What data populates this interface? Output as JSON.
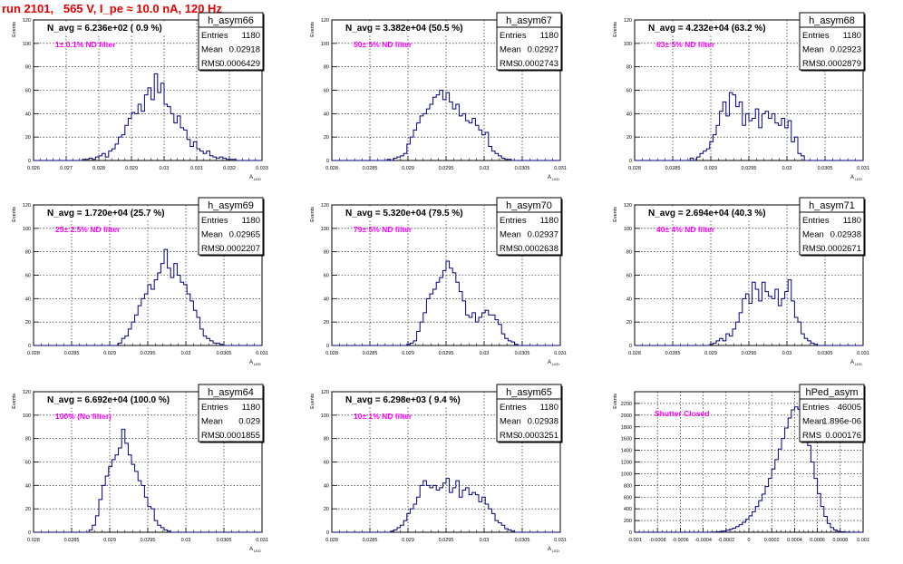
{
  "page": {
    "run_title": "run 2101,   565 V, I_pe ≈ 10.0 nA, 120 Hz"
  },
  "style": {
    "hist_color": "#000080",
    "annotation_color": "#ff00ff",
    "title_color": "#e60000"
  },
  "chart_data": [
    {
      "type": "bar",
      "histogram": true,
      "name": "h_asym66",
      "navg_text": "N_avg = 6.236e+02 ( 0.9 %)",
      "annotation": "1± 0.1% ND filter",
      "stats": {
        "entries_label": "Entries",
        "entries": "1180",
        "mean_label": "Mean",
        "mean": "0.02918",
        "rms_label": "RMS",
        "rms": "0.0006429"
      },
      "ylabel": "Events",
      "xlabel": "A_{LED}",
      "xlim": [
        0.026,
        0.033
      ],
      "ylim": [
        0,
        120
      ],
      "xticks": [
        "0.026",
        "0.027",
        "0.028",
        "0.029",
        "0.03",
        "0.031",
        "0.032",
        "0.033"
      ],
      "xtick_values": [
        0.026,
        0.027,
        0.028,
        0.029,
        0.03,
        0.031,
        0.032,
        0.033
      ],
      "yticks": [
        "0",
        "20",
        "40",
        "60",
        "80",
        "100",
        "120"
      ],
      "grid": true,
      "values": [
        0,
        0,
        0,
        0,
        0,
        0,
        0,
        0,
        0,
        0,
        0,
        0,
        0,
        0,
        0,
        1,
        1,
        2,
        1,
        3,
        4,
        6,
        3,
        8,
        10,
        14,
        20,
        22,
        30,
        36,
        41,
        40,
        48,
        42,
        56,
        62,
        52,
        74,
        58,
        66,
        48,
        46,
        40,
        32,
        38,
        28,
        26,
        18,
        12,
        16,
        10,
        8,
        6,
        8,
        4,
        3,
        2,
        3,
        2,
        1,
        1,
        1,
        0,
        0,
        0,
        0,
        0,
        0,
        0,
        0
      ]
    },
    {
      "type": "bar",
      "histogram": true,
      "name": "h_asym67",
      "navg_text": "N_avg = 3.382e+04 (50.5 %)",
      "annotation": "50± 5% ND filter",
      "stats": {
        "entries_label": "Entries",
        "entries": "1180",
        "mean_label": "Mean",
        "mean": "0.02927",
        "rms_label": "RMS",
        "rms": "0.0002743"
      },
      "ylabel": "Events",
      "xlabel": "A_{LED}",
      "xlim": [
        0.028,
        0.031
      ],
      "ylim": [
        0,
        120
      ],
      "xticks": [
        "0.028",
        "0.0285",
        "0.029",
        "0.0295",
        "0.03",
        "0.0305",
        "0.031"
      ],
      "xtick_values": [
        0.028,
        0.0285,
        0.029,
        0.0295,
        0.03,
        0.0305,
        0.031
      ],
      "yticks": [
        "0",
        "20",
        "40",
        "60",
        "80",
        "100",
        "120"
      ],
      "grid": true,
      "values": [
        0,
        0,
        0,
        0,
        0,
        0,
        0,
        0,
        0,
        0,
        0,
        0,
        0,
        0,
        0,
        0,
        0,
        1,
        0,
        2,
        3,
        4,
        6,
        14,
        20,
        26,
        32,
        38,
        40,
        44,
        48,
        54,
        56,
        60,
        52,
        58,
        50,
        44,
        48,
        38,
        40,
        34,
        32,
        36,
        30,
        26,
        22,
        24,
        12,
        8,
        6,
        4,
        2,
        1,
        1,
        0,
        0,
        0,
        0,
        0,
        0,
        0,
        0,
        0,
        0,
        0,
        0,
        0,
        0,
        0
      ]
    },
    {
      "type": "bar",
      "histogram": true,
      "name": "h_asym68",
      "navg_text": "N_avg = 4.232e+04 (63.2 %)",
      "annotation": "63± 5% ND filter",
      "stats": {
        "entries_label": "Entries",
        "entries": "1180",
        "mean_label": "Mean",
        "mean": "0.02923",
        "rms_label": "RMS",
        "rms": "0.0002879"
      },
      "ylabel": "Events",
      "xlabel": "A_{LED}",
      "xlim": [
        0.028,
        0.031
      ],
      "ylim": [
        0,
        120
      ],
      "xticks": [
        "0.028",
        "0.0285",
        "0.029",
        "0.0295",
        "0.03",
        "0.0305",
        "0.031"
      ],
      "xtick_values": [
        0.028,
        0.0285,
        0.029,
        0.0295,
        0.03,
        0.0305,
        0.031
      ],
      "yticks": [
        "0",
        "20",
        "40",
        "60",
        "80",
        "100",
        "120"
      ],
      "grid": true,
      "values": [
        0,
        0,
        0,
        0,
        0,
        0,
        0,
        0,
        0,
        0,
        0,
        0,
        0,
        0,
        0,
        0,
        0,
        2,
        0,
        3,
        6,
        8,
        10,
        16,
        22,
        30,
        42,
        50,
        38,
        58,
        56,
        46,
        50,
        30,
        40,
        34,
        36,
        44,
        28,
        40,
        42,
        36,
        40,
        32,
        30,
        36,
        28,
        34,
        16,
        20,
        6,
        4,
        0,
        0,
        0,
        0,
        0,
        0,
        0,
        0,
        0,
        0,
        0,
        0,
        0,
        0,
        0,
        0,
        0,
        0
      ]
    },
    {
      "type": "bar",
      "histogram": true,
      "name": "h_asym69",
      "navg_text": "N_avg = 1.720e+04 (25.7 %)",
      "annotation": "25± 2.5% ND filter",
      "stats": {
        "entries_label": "Entries",
        "entries": "1180",
        "mean_label": "Mean",
        "mean": "0.02965",
        "rms_label": "RMS",
        "rms": "0.0002207"
      },
      "ylabel": "Events",
      "xlabel": "A_{LED}",
      "xlim": [
        0.028,
        0.031
      ],
      "ylim": [
        0,
        120
      ],
      "xticks": [
        "0.028",
        "0.0285",
        "0.029",
        "0.0295",
        "0.03",
        "0.0305",
        "0.031"
      ],
      "xtick_values": [
        0.028,
        0.0285,
        0.029,
        0.0295,
        0.03,
        0.0305,
        0.031
      ],
      "yticks": [
        "0",
        "20",
        "40",
        "60",
        "80",
        "100",
        "120"
      ],
      "grid": true,
      "values": [
        0,
        0,
        0,
        0,
        0,
        0,
        0,
        0,
        0,
        0,
        0,
        0,
        0,
        0,
        0,
        0,
        0,
        0,
        0,
        0,
        0,
        0,
        0,
        0,
        0,
        0,
        2,
        6,
        8,
        14,
        20,
        26,
        34,
        40,
        44,
        52,
        48,
        56,
        62,
        70,
        82,
        66,
        58,
        70,
        60,
        54,
        52,
        44,
        38,
        30,
        24,
        14,
        8,
        6,
        4,
        2,
        2,
        1,
        0,
        0,
        0,
        0,
        0,
        0,
        0,
        0,
        0,
        0,
        0,
        0
      ]
    },
    {
      "type": "bar",
      "histogram": true,
      "name": "h_asym70",
      "navg_text": "N_avg = 5.320e+04 (79.5 %)",
      "annotation": "79± 5% ND filter",
      "stats": {
        "entries_label": "Entries",
        "entries": "1180",
        "mean_label": "Mean",
        "mean": "0.02937",
        "rms_label": "RMS",
        "rms": "0.0002638"
      },
      "ylabel": "Events",
      "xlabel": "A_{LED}",
      "xlim": [
        0.028,
        0.031
      ],
      "ylim": [
        0,
        120
      ],
      "xticks": [
        "0.028",
        "0.0285",
        "0.029",
        "0.0295",
        "0.03",
        "0.0305",
        "0.031"
      ],
      "xtick_values": [
        0.028,
        0.0285,
        0.029,
        0.0295,
        0.03,
        0.0305,
        0.031
      ],
      "yticks": [
        "0",
        "20",
        "40",
        "60",
        "80",
        "100",
        "120"
      ],
      "grid": true,
      "values": [
        0,
        0,
        0,
        0,
        0,
        0,
        0,
        0,
        0,
        0,
        0,
        0,
        0,
        0,
        0,
        0,
        0,
        0,
        0,
        0,
        0,
        0,
        0,
        1,
        2,
        4,
        12,
        20,
        28,
        40,
        44,
        48,
        54,
        58,
        64,
        72,
        66,
        62,
        54,
        46,
        38,
        26,
        24,
        28,
        20,
        24,
        28,
        30,
        26,
        26,
        22,
        18,
        10,
        6,
        4,
        3,
        1,
        0,
        0,
        0,
        0,
        0,
        0,
        0,
        0,
        0,
        0,
        0,
        0,
        0
      ]
    },
    {
      "type": "bar",
      "histogram": true,
      "name": "h_asym71",
      "navg_text": "N_avg = 2.694e+04 (40.3 %)",
      "annotation": "40± 4% ND filter",
      "stats": {
        "entries_label": "Entries",
        "entries": "1180",
        "mean_label": "Mean",
        "mean": "0.02938",
        "rms_label": "RMS",
        "rms": "0.0002671"
      },
      "ylabel": "Events",
      "xlabel": "A_{LED}",
      "xlim": [
        0.028,
        0.031
      ],
      "ylim": [
        0,
        120
      ],
      "xticks": [
        "0.028",
        "0.0285",
        "0.029",
        "0.0295",
        "0.03",
        "0.0305",
        "0.031"
      ],
      "xtick_values": [
        0.028,
        0.0285,
        0.029,
        0.0295,
        0.03,
        0.0305,
        0.031
      ],
      "yticks": [
        "0",
        "20",
        "40",
        "60",
        "80",
        "100",
        "120"
      ],
      "grid": true,
      "values": [
        0,
        0,
        0,
        0,
        0,
        0,
        0,
        0,
        0,
        0,
        0,
        0,
        0,
        0,
        0,
        0,
        0,
        0,
        0,
        0,
        0,
        0,
        0,
        1,
        2,
        4,
        6,
        4,
        10,
        8,
        14,
        20,
        28,
        40,
        44,
        36,
        54,
        48,
        38,
        54,
        46,
        42,
        40,
        48,
        34,
        40,
        46,
        56,
        38,
        24,
        20,
        10,
        6,
        4,
        2,
        1,
        0,
        0,
        0,
        0,
        0,
        0,
        0,
        0,
        0,
        0,
        0,
        0,
        0,
        0
      ]
    },
    {
      "type": "bar",
      "histogram": true,
      "name": "h_asym64",
      "navg_text": "N_avg = 6.692e+04 (100.0 %)",
      "annotation": "100% (No filter)",
      "stats": {
        "entries_label": "Entries",
        "entries": "1180",
        "mean_label": "Mean",
        "mean": "0.029",
        "rms_label": "RMS",
        "rms": "0.0001855"
      },
      "ylabel": "Events",
      "xlabel": "A_{LED}",
      "xlim": [
        0.028,
        0.031
      ],
      "ylim": [
        0,
        120
      ],
      "xticks": [
        "0.028",
        "0.0285",
        "0.029",
        "0.0295",
        "0.03",
        "0.0305",
        "0.031"
      ],
      "xtick_values": [
        0.028,
        0.0285,
        0.029,
        0.0295,
        0.03,
        0.0305,
        0.031
      ],
      "yticks": [
        "0",
        "20",
        "40",
        "60",
        "80",
        "100",
        "120"
      ],
      "grid": true,
      "values": [
        0,
        0,
        0,
        0,
        0,
        0,
        0,
        0,
        0,
        0,
        0,
        0,
        0,
        0,
        0,
        0,
        0,
        2,
        6,
        14,
        28,
        40,
        48,
        56,
        62,
        66,
        72,
        88,
        76,
        66,
        58,
        52,
        44,
        40,
        30,
        22,
        20,
        10,
        6,
        4,
        2,
        1,
        0,
        0,
        0,
        0,
        0,
        0,
        0,
        0,
        0,
        0,
        0,
        0,
        0,
        0,
        0,
        0,
        0,
        0,
        0,
        0,
        0,
        0,
        0,
        0,
        0,
        0,
        0,
        0
      ]
    },
    {
      "type": "bar",
      "histogram": true,
      "name": "h_asym65",
      "navg_text": "N_avg = 6.298e+03 ( 9.4 %)",
      "annotation": "10± 1% ND filter",
      "stats": {
        "entries_label": "Entries",
        "entries": "1180",
        "mean_label": "Mean",
        "mean": "0.02938",
        "rms_label": "RMS",
        "rms": "0.0003251"
      },
      "ylabel": "Events",
      "xlabel": "A_{LED}",
      "xlim": [
        0.028,
        0.031
      ],
      "ylim": [
        0,
        120
      ],
      "xticks": [
        "0.028",
        "0.0285",
        "0.029",
        "0.0295",
        "0.03",
        "0.0305",
        "0.031"
      ],
      "xtick_values": [
        0.028,
        0.0285,
        0.029,
        0.0295,
        0.03,
        0.0305,
        0.031
      ],
      "yticks": [
        "0",
        "20",
        "40",
        "60",
        "80",
        "100",
        "120"
      ],
      "grid": true,
      "values": [
        0,
        0,
        0,
        0,
        0,
        0,
        0,
        0,
        0,
        0,
        0,
        0,
        0,
        0,
        0,
        0,
        0,
        0,
        1,
        2,
        4,
        6,
        10,
        16,
        20,
        24,
        30,
        40,
        44,
        40,
        38,
        40,
        36,
        38,
        42,
        46,
        34,
        38,
        44,
        30,
        36,
        38,
        32,
        34,
        32,
        26,
        30,
        24,
        20,
        16,
        10,
        8,
        6,
        3,
        2,
        1,
        0,
        0,
        0,
        0,
        0,
        0,
        0,
        0,
        0,
        0,
        0,
        0,
        0,
        0
      ]
    },
    {
      "type": "bar",
      "histogram": true,
      "name": "hPed_asym",
      "navg_text": "",
      "annotation": "Shutter Closed",
      "stats": {
        "entries_label": "Entries",
        "entries": "46005",
        "mean_label": "Mean",
        "mean": "1.896e-06",
        "rms_label": "RMS",
        "rms": "0.000176"
      },
      "ylabel": "Events",
      "xlabel": "",
      "xlim": [
        -0.001,
        0.001
      ],
      "ylim": [
        0,
        2400
      ],
      "xticks": [
        "-0.001",
        "-0.0008",
        "-0.0006",
        "-0.0004",
        "-0.0002",
        "0",
        "0.0002",
        "0.0004",
        "0.0006",
        "0.0008",
        "0.001"
      ],
      "xtick_values": [
        -0.001,
        -0.0008,
        -0.0006,
        -0.0004,
        -0.0002,
        0,
        0.0002,
        0.0004,
        0.0006,
        0.0008,
        0.001
      ],
      "yticks": [
        "0",
        "200",
        "400",
        "600",
        "800",
        "1000",
        "1200",
        "1400",
        "1600",
        "1800",
        "2000",
        "2200"
      ],
      "grid": true,
      "values": [
        0,
        0,
        0,
        0,
        0,
        0,
        0,
        0,
        0,
        0,
        0,
        0,
        0,
        0,
        0,
        0,
        0,
        0,
        0,
        0,
        0,
        0,
        0,
        2,
        4,
        8,
        14,
        22,
        34,
        50,
        70,
        96,
        130,
        170,
        220,
        280,
        350,
        440,
        540,
        650,
        780,
        920,
        1080,
        1240,
        1420,
        1600,
        1780,
        1950,
        2090,
        2140,
        2100,
        1960,
        1740,
        1480,
        1200,
        920,
        660,
        440,
        270,
        150,
        80,
        40,
        18,
        8,
        4,
        2,
        1,
        0,
        0,
        0
      ]
    }
  ]
}
